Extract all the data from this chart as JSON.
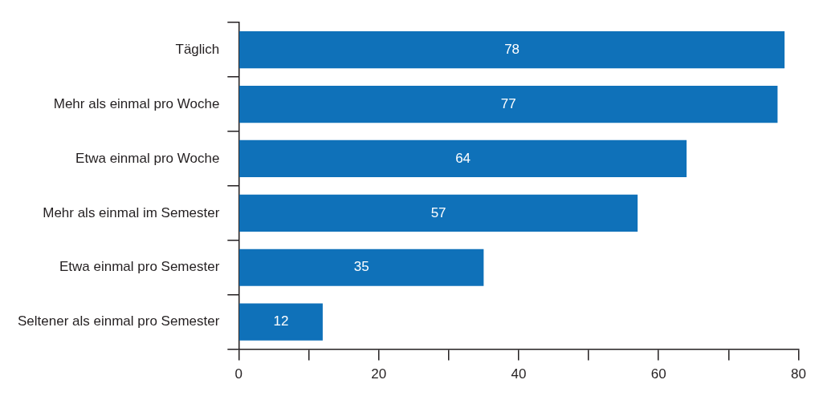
{
  "chart_data": {
    "type": "bar",
    "orientation": "horizontal",
    "categories": [
      "Täglich",
      "Mehr als einmal pro Woche",
      "Etwa einmal pro Woche",
      "Mehr als einmal im Semester",
      "Etwa einmal pro Semester",
      "Seltener als einmal pro Semester"
    ],
    "values": [
      78,
      77,
      64,
      57,
      35,
      12
    ],
    "color": "#0f71b9",
    "xlim": [
      0,
      80
    ],
    "xticks": [
      0,
      {
        "value": 10,
        "label": null
      },
      20,
      {
        "value": 30,
        "label": null
      },
      40,
      {
        "value": 50,
        "label": null
      },
      60,
      {
        "value": 70,
        "label": null
      },
      80
    ],
    "data_labels": true,
    "grid": false,
    "legend": false
  }
}
